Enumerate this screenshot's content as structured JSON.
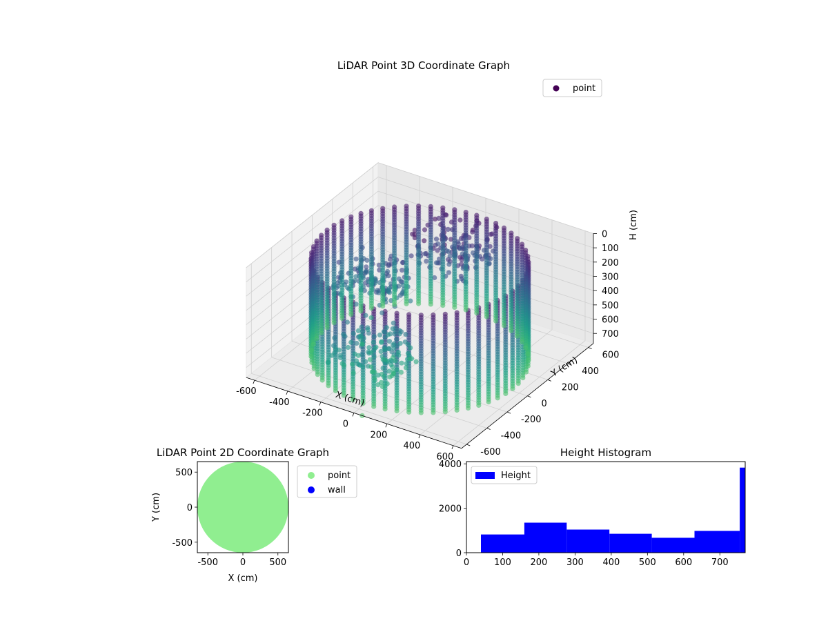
{
  "chart_data": [
    {
      "type": "scatter",
      "projection": "3d",
      "title": "LiDAR Point 3D Coordinate Graph",
      "xlabel": "X (cm)",
      "ylabel": "Y (cm)",
      "zlabel": "H (cm)",
      "xlim": [
        -650,
        650
      ],
      "ylim": [
        -650,
        650
      ],
      "zlim": [
        0,
        770
      ],
      "z_axis_inverted": true,
      "xticks": [
        -600,
        -400,
        -200,
        0,
        200,
        400,
        600
      ],
      "yticks": [
        -600,
        -400,
        -200,
        0,
        200,
        400,
        600
      ],
      "zticks": [
        0,
        100,
        200,
        300,
        400,
        500,
        600,
        700
      ],
      "colormap": "viridis",
      "grid": true,
      "legend": {
        "placement": "upper-right",
        "entries": [
          {
            "label": "point",
            "color": "#440154"
          }
        ]
      },
      "structure": {
        "wall_radius_cm": 560,
        "wall_column_count": 56,
        "wall_height_range_cm": [
          70,
          770
        ],
        "inner_clusters_cm": [
          {
            "x": 0,
            "y": 330,
            "h": 170
          },
          {
            "x": -280,
            "y": 0,
            "h": 330
          },
          {
            "x": -80,
            "y": -320,
            "h": 560
          }
        ],
        "stray_points_cm": [
          {
            "x": -330,
            "y": 60,
            "h": 630
          },
          {
            "x": 50,
            "y": -650,
            "h": 770
          }
        ]
      }
    },
    {
      "type": "scatter",
      "title": "LiDAR Point 2D Coordinate Graph",
      "xlabel": "X (cm)",
      "ylabel": "Y (cm)",
      "xlim": [
        -650,
        650
      ],
      "ylim": [
        -650,
        650
      ],
      "xticks": [
        -500,
        0,
        500
      ],
      "yticks": [
        -500,
        0,
        500
      ],
      "disc_radius_cm": 650,
      "legend": {
        "placement": "outside-right",
        "entries": [
          {
            "label": "point",
            "color": "#90ee90"
          },
          {
            "label": "wall",
            "color": "#0000ff"
          }
        ]
      }
    },
    {
      "type": "bar",
      "subtype": "histogram",
      "title": "Height Histogram",
      "xlim": [
        0,
        770
      ],
      "ylim": [
        0,
        4100
      ],
      "xticks": [
        0,
        100,
        200,
        300,
        400,
        500,
        600,
        700
      ],
      "yticks": [
        0,
        2000,
        4000
      ],
      "color": "#0000ff",
      "legend": {
        "placement": "upper-left",
        "entries": [
          {
            "label": "Height",
            "color": "#0000ff"
          }
        ]
      },
      "bins": [
        {
          "from": 40,
          "to": 160,
          "value": 820
        },
        {
          "from": 160,
          "to": 277,
          "value": 1350
        },
        {
          "from": 277,
          "to": 395,
          "value": 1040
        },
        {
          "from": 395,
          "to": 512,
          "value": 850
        },
        {
          "from": 512,
          "to": 630,
          "value": 670
        },
        {
          "from": 630,
          "to": 755,
          "value": 980
        },
        {
          "from": 755,
          "to": 770,
          "value": 3830
        }
      ]
    }
  ]
}
